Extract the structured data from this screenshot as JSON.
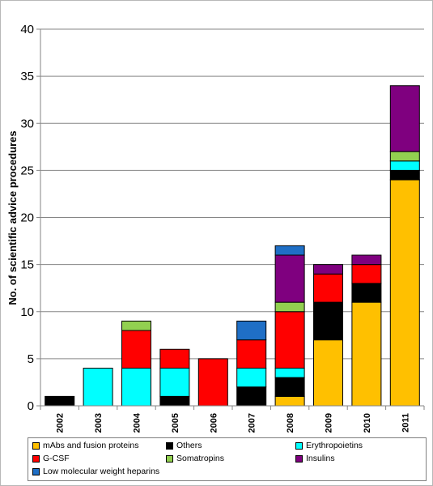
{
  "chart_data": {
    "type": "bar",
    "stacked": true,
    "ylabel": "No. of scientific advice procedures",
    "xlabel": "",
    "ylim": [
      0,
      40
    ],
    "yticks": [
      0,
      5,
      10,
      15,
      20,
      25,
      30,
      35,
      40
    ],
    "grid": true,
    "legend_position": "bottom",
    "categories": [
      "2002",
      "2003",
      "2004",
      "2005",
      "2006",
      "2007",
      "2008",
      "2009",
      "2010",
      "2011"
    ],
    "series": [
      {
        "name": "mAbs and fusion proteins",
        "color": "#ffc000",
        "values": [
          0,
          0,
          0,
          0,
          0,
          0,
          1,
          7,
          11,
          24
        ]
      },
      {
        "name": "Others",
        "color": "#000000",
        "values": [
          1,
          0,
          0,
          1,
          0,
          2,
          2,
          4,
          2,
          1
        ]
      },
      {
        "name": "Erythropoietins",
        "color": "#00ffff",
        "values": [
          0,
          4,
          4,
          3,
          0,
          2,
          1,
          0,
          0,
          1
        ]
      },
      {
        "name": "G-CSF",
        "color": "#ff0000",
        "values": [
          0,
          0,
          4,
          2,
          5,
          3,
          6,
          3,
          2,
          0
        ]
      },
      {
        "name": "Somatropins",
        "color": "#92d050",
        "values": [
          0,
          0,
          1,
          0,
          0,
          0,
          1,
          0,
          0,
          1
        ]
      },
      {
        "name": "Insulins",
        "color": "#7f007f",
        "values": [
          0,
          0,
          0,
          0,
          0,
          0,
          5,
          1,
          1,
          7
        ]
      },
      {
        "name": "Low molecular weight heparins",
        "color": "#1f6fc6",
        "values": [
          0,
          0,
          0,
          0,
          0,
          2,
          1,
          0,
          0,
          0
        ]
      }
    ]
  }
}
